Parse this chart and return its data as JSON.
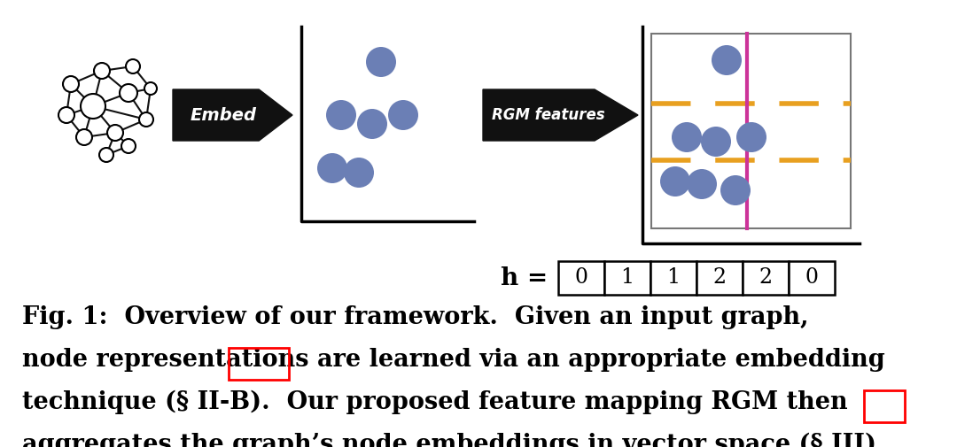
{
  "bg_color": "#ffffff",
  "dot_color": "#6b7fb5",
  "arrow_color": "#111111",
  "embed_arrow_text": "Embed",
  "rgm_arrow_text": "RGM features",
  "h_label": "h =",
  "h_values": [
    "0",
    "1",
    "1",
    "2",
    "2",
    "0"
  ],
  "orange_dash_color": "#e8a020",
  "magenta_line_color": "#cc3399",
  "caption_line1": "Fig. 1:  Overview of our framework.  Given an input graph,",
  "caption_line2": "node representations are learned via an appropriate embedding",
  "caption_line3": "technique (§ II-B).  Our proposed feature mapping RGM then",
  "caption_line4": "aggregates the graph’s node embeddings in vector space (§ III).",
  "font_size_caption": 19.5,
  "graph_node_color": "#ffffff",
  "graph_edge_color": "#111111"
}
